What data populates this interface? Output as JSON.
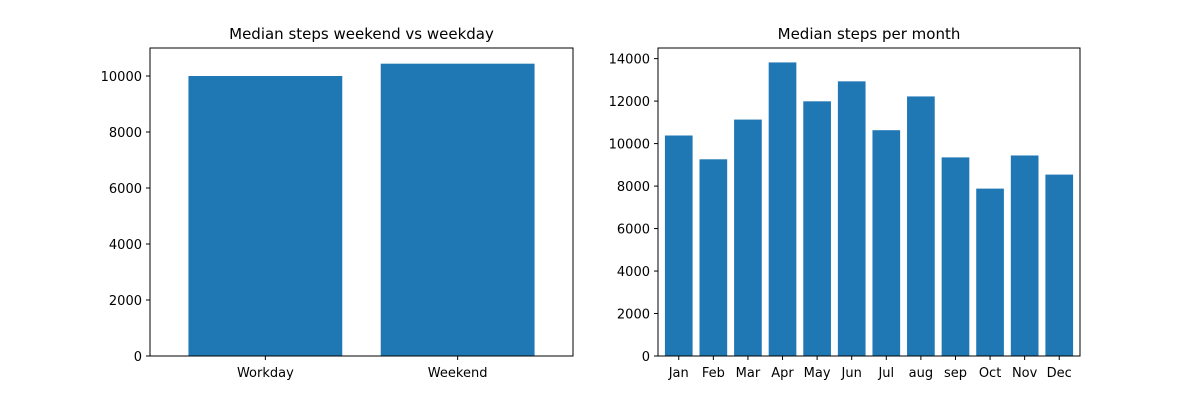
{
  "colors": {
    "bar": "#1f77b4",
    "axis": "#000000",
    "background": "#ffffff"
  },
  "chart_data": [
    {
      "type": "bar",
      "title": "Median steps weekend vs weekday",
      "xlabel": "",
      "ylabel": "",
      "categories": [
        "Workday",
        "Weekend"
      ],
      "values": [
        10000,
        10440
      ],
      "ylim": [
        0,
        11000
      ],
      "yticks": [
        0,
        2000,
        4000,
        6000,
        8000,
        10000
      ],
      "grid": false,
      "legend": "none"
    },
    {
      "type": "bar",
      "title": "Median steps per month",
      "xlabel": "",
      "ylabel": "",
      "categories": [
        "Jan",
        "Feb",
        "Mar",
        "Apr",
        "May",
        "Jun",
        "Jul",
        "aug",
        "sep",
        "Oct",
        "Nov",
        "Dec"
      ],
      "values": [
        10380,
        9260,
        11130,
        13820,
        11990,
        12930,
        10630,
        12220,
        9350,
        7880,
        9440,
        8540
      ],
      "ylim": [
        0,
        14500
      ],
      "yticks": [
        0,
        2000,
        4000,
        6000,
        8000,
        10000,
        12000,
        14000
      ],
      "grid": false,
      "legend": "none"
    }
  ]
}
